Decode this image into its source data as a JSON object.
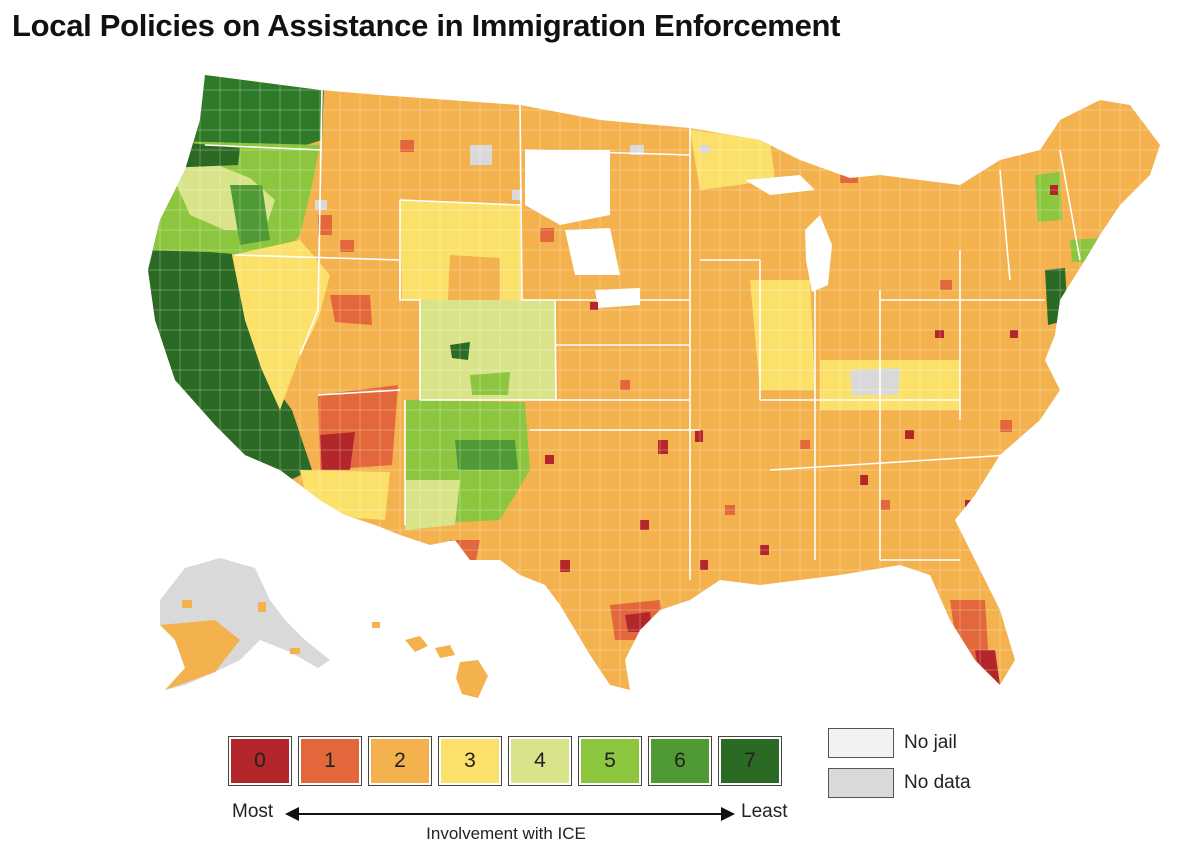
{
  "title": "Local Policies on Assistance in Immigration Enforcement",
  "colors": {
    "level_0": "#b3262a",
    "level_1": "#e2673a",
    "level_2": "#f4b24e",
    "level_3": "#fbe06a",
    "level_4": "#d9e48a",
    "level_5": "#8cc63f",
    "level_6": "#4f9a34",
    "level_7": "#2b6a25",
    "no_jail": "#f2f2f2",
    "no_data": "#d9d9d9",
    "border": "#ffffff"
  },
  "legend": {
    "levels": [
      "0",
      "1",
      "2",
      "3",
      "4",
      "5",
      "6",
      "7"
    ],
    "no_jail_label": "No jail",
    "no_data_label": "No data",
    "most_label": "Most",
    "least_label": "Least",
    "axis_label": "Involvement with ICE"
  }
}
